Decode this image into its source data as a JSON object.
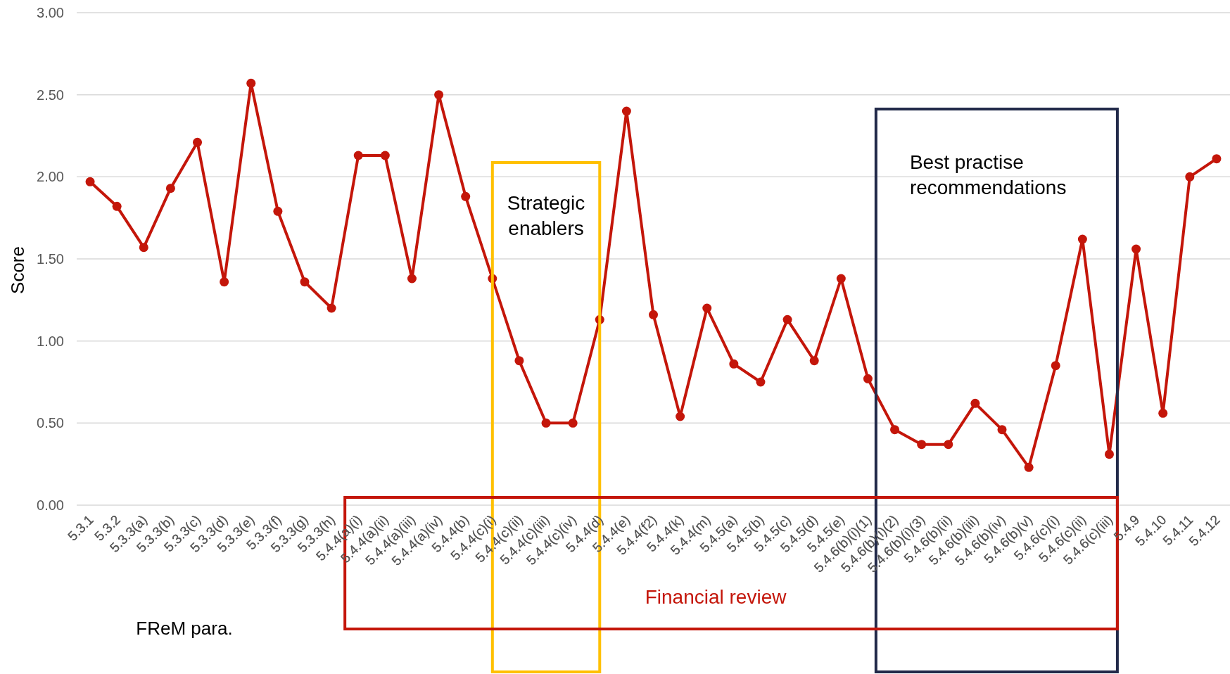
{
  "chart_data": {
    "type": "line",
    "ylabel": "Score",
    "xlabel": "FReM para.",
    "categories": [
      "5.3.1",
      "5.3.2",
      "5.3.3(a)",
      "5.3.3(b)",
      "5.3.3(c)",
      "5.3.3(d)",
      "5.3.3(e)",
      "5.3.3(f)",
      "5.3.3(g)",
      "5.3.3(h)",
      "5.4.4(a)(i)",
      "5.4.4(a)(ii)",
      "5.4.4(a)(iii)",
      "5.4.4(a)(iv)",
      "5.4.4(b)",
      "5.4.4(c)(i)",
      "5.4.4(c)(ii)",
      "5.4.4(c)(iii)",
      "5.4.4(c)(iv)",
      "5.4.4(d)",
      "5.4.4(e)",
      "5.4.4(f2)",
      "5.4.4(k)",
      "5.4.4(m)",
      "5.4.5(a)",
      "5.4.5(b)",
      "5.4.5(c)",
      "5.4.5(d)",
      "5.4.5(e)",
      "5.4.6(b)(i)(1)",
      "5.4.6(b)(i)(2)",
      "5.4.6(b)(i)(3)",
      "5.4.6(b)(ii)",
      "5.4.6(b)(iii)",
      "5.4.6(b)(iv)",
      "5.4.6(b)(v)",
      "5.4.6(c)(i)",
      "5.4.6(c)(ii)",
      "5.4.6(c)(iii)",
      "5.4.9",
      "5.4.10",
      "5.4.11",
      "5.4.12"
    ],
    "series": [
      {
        "color": "#c4160a",
        "values": [
          1.97,
          1.82,
          1.57,
          1.93,
          2.21,
          1.36,
          2.57,
          1.79,
          1.36,
          1.2,
          2.13,
          2.13,
          1.38,
          2.5,
          1.88,
          1.38,
          0.88,
          0.5,
          0.5,
          1.13,
          2.4,
          1.16,
          0.54,
          1.2,
          0.86,
          0.75,
          1.13,
          0.88,
          1.38,
          0.77,
          0.46,
          0.37,
          0.37,
          0.62,
          0.46,
          0.23,
          0.85,
          1.62,
          0.31,
          1.56,
          0.56,
          2.0,
          2.11
        ]
      }
    ],
    "ylim": [
      0,
      3
    ],
    "yticks": [
      {
        "value": 0,
        "label": "0.00"
      },
      {
        "value": 0.5,
        "label": "0.50"
      },
      {
        "value": 1,
        "label": "1.00"
      },
      {
        "value": 1.5,
        "label": "1.50"
      },
      {
        "value": 2,
        "label": "2.00"
      },
      {
        "value": 2.5,
        "label": "2.50"
      },
      {
        "value": 3,
        "label": "3.00"
      }
    ],
    "grid": "y",
    "marker": "circle",
    "line_style": "solid",
    "annotations": [
      "Strategic enablers",
      "Best practise recommendations",
      "Financial review"
    ]
  }
}
